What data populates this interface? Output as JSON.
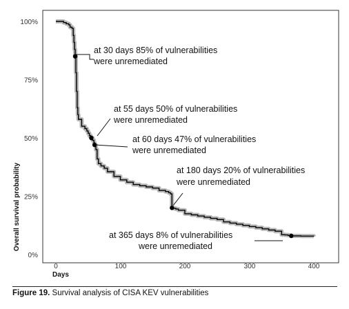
{
  "chart_data": {
    "type": "line",
    "xlabel": "Days",
    "ylabel": "Overall survival probability",
    "xlim": [
      -20,
      410
    ],
    "ylim": [
      0,
      100
    ],
    "x_ticks": [
      0,
      100,
      200,
      300,
      400
    ],
    "y_ticks": [
      {
        "value": 0,
        "label": "0%"
      },
      {
        "value": 25,
        "label": "25%"
      },
      {
        "value": 50,
        "label": "50%"
      },
      {
        "value": 75,
        "label": "75%"
      },
      {
        "value": 100,
        "label": "100%"
      }
    ],
    "grid": false,
    "confidence_band": true,
    "series": [
      {
        "x": [
          0,
          8,
          12,
          16,
          20,
          22,
          25,
          27,
          28,
          29,
          30,
          31,
          32,
          33,
          34,
          35,
          40,
          45,
          48,
          50,
          52,
          54,
          55,
          57,
          59,
          60,
          62,
          64,
          66,
          70,
          75,
          80,
          90,
          100,
          110,
          120,
          130,
          140,
          150,
          160,
          170,
          175,
          178,
          180,
          183,
          186,
          190,
          200,
          210,
          220,
          230,
          240,
          250,
          260,
          270,
          280,
          290,
          300,
          310,
          320,
          330,
          340,
          350,
          355,
          360,
          365,
          370,
          380,
          390,
          400
        ],
        "y": [
          100,
          100,
          99.5,
          99,
          98.5,
          97.5,
          97,
          94,
          91,
          88,
          85,
          78,
          70,
          63,
          60,
          58,
          55,
          54,
          53,
          52,
          51,
          50.5,
          50,
          49,
          48,
          47,
          45,
          41,
          39,
          38,
          37,
          35.5,
          33.5,
          32,
          31,
          30,
          29.5,
          29,
          28.5,
          27.5,
          27,
          26.5,
          26,
          20,
          19.8,
          19.5,
          19,
          17.5,
          17,
          16.5,
          16,
          15.5,
          15,
          14,
          13.5,
          13,
          12.5,
          12,
          11.5,
          11,
          10.5,
          10,
          8.5,
          8.4,
          8.2,
          8,
          8,
          7.9,
          7.9,
          7.8
        ]
      }
    ],
    "highlight_points": [
      {
        "x": 30,
        "y": 85
      },
      {
        "x": 55,
        "y": 50
      },
      {
        "x": 60,
        "y": 47
      },
      {
        "x": 180,
        "y": 20
      },
      {
        "x": 365,
        "y": 8
      }
    ],
    "annotations": [
      {
        "line1": "at 30 days 85% of vulnerabilities",
        "line2": "were unremediated"
      },
      {
        "line1": "at 55 days 50% of vulnerabilities",
        "line2": "were unremediated"
      },
      {
        "line1": "at 60 days 47% of vulnerabilities",
        "line2": "were unremediated"
      },
      {
        "line1": "at 180 days 20% of vulnerabilities",
        "line2": "were unremediated"
      },
      {
        "line1": "at 365 days 8% of vulnerabilities",
        "line2": "were unremediated"
      }
    ],
    "colors": {
      "line": "#000000",
      "band": "#b8b8b8",
      "frame": "#333333"
    }
  },
  "caption": {
    "label": "Figure 19.",
    "text": " Survival analysis of CISA KEV vulnerabilities"
  }
}
